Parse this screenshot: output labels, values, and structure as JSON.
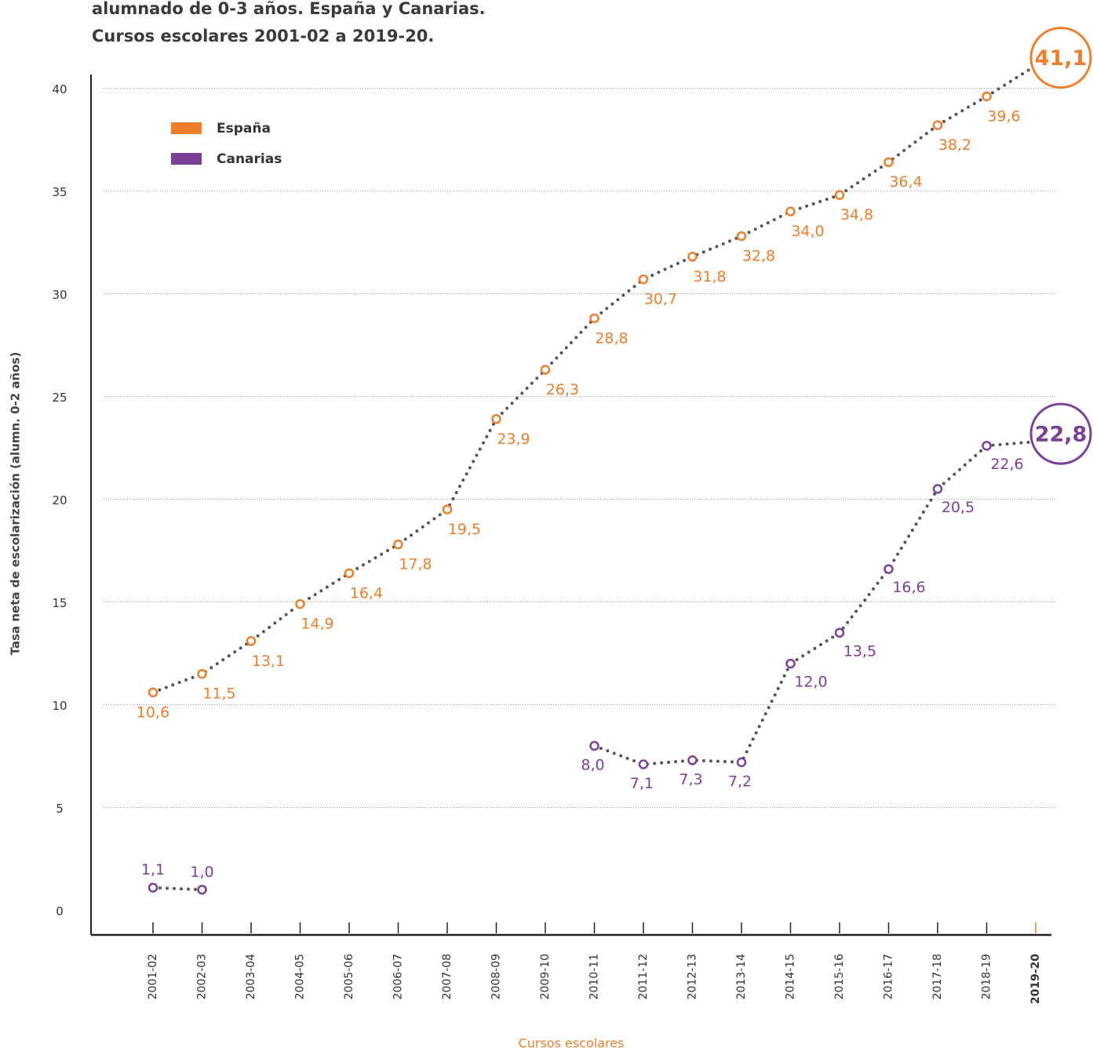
{
  "chart_data": {
    "type": "line",
    "title": "alumnado de 0-3 años. España y Canarias.",
    "subtitle": "Cursos escolares 2001-02 a 2019-20.",
    "y_label": "Tasa neta de escolarización (alumn. 0-2 años)",
    "x_label": "Cursos escolares",
    "categories": [
      "2001-02",
      "2002-03",
      "2003-04",
      "2004-05",
      "2005-06",
      "2006-07",
      "2007-08",
      "2008-09",
      "2009-10",
      "2010-11",
      "2011-12",
      "2012-13",
      "2013-14",
      "2014-15",
      "2015-16",
      "2016-17",
      "2017-18",
      "2018-19",
      "2019-20"
    ],
    "series": [
      {
        "name": "España",
        "color": "#f07d2a",
        "values": [
          10.6,
          11.5,
          13.1,
          14.9,
          16.4,
          17.8,
          19.5,
          23.9,
          26.3,
          28.8,
          30.7,
          31.8,
          32.8,
          34.0,
          34.8,
          36.4,
          38.2,
          39.6,
          41.1
        ],
        "value_labels": [
          "10,6",
          "11,5",
          "13,1",
          "14,9",
          "16,4",
          "17,8",
          "19,5",
          "23,9",
          "26,3",
          "28,8",
          "30,7",
          "31,8",
          "32,8",
          "34,0",
          "34,8",
          "36,4",
          "38,2",
          "39,6",
          "41,1"
        ]
      },
      {
        "name": "Canarias",
        "color": "#7b3f98",
        "values": [
          1.1,
          1.0,
          null,
          null,
          null,
          null,
          null,
          null,
          null,
          8.0,
          7.1,
          7.3,
          7.2,
          12.0,
          13.5,
          16.6,
          20.5,
          22.6,
          22.8
        ],
        "value_labels": [
          "1,1",
          "1,0",
          null,
          null,
          null,
          null,
          null,
          null,
          null,
          "8,0",
          "7,1",
          "7,3",
          "7,2",
          "12,0",
          "13,5",
          "16,6",
          "20,5",
          "22,6",
          "22,8"
        ]
      }
    ],
    "line_color": "#555555",
    "ylim": [
      -1.2,
      42
    ],
    "yticks": [
      0,
      5,
      10,
      15,
      20,
      25,
      30,
      35,
      40
    ],
    "grid": true,
    "legend": "top-left"
  }
}
